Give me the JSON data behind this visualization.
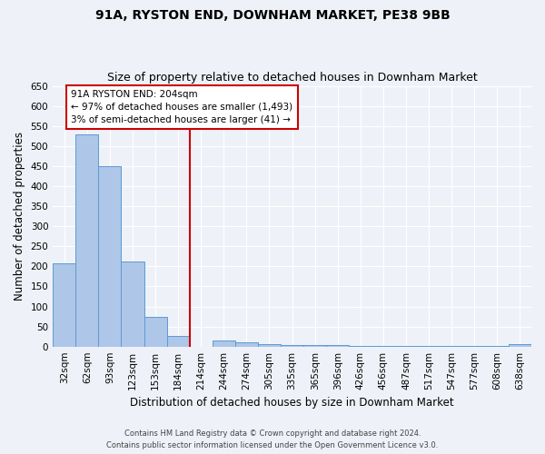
{
  "title1": "91A, RYSTON END, DOWNHAM MARKET, PE38 9BB",
  "title2": "Size of property relative to detached houses in Downham Market",
  "xlabel": "Distribution of detached houses by size in Downham Market",
  "ylabel": "Number of detached properties",
  "categories": [
    "32sqm",
    "62sqm",
    "93sqm",
    "123sqm",
    "153sqm",
    "184sqm",
    "214sqm",
    "244sqm",
    "274sqm",
    "305sqm",
    "335sqm",
    "365sqm",
    "396sqm",
    "426sqm",
    "456sqm",
    "487sqm",
    "517sqm",
    "547sqm",
    "577sqm",
    "608sqm",
    "638sqm"
  ],
  "values": [
    208,
    530,
    450,
    212,
    75,
    27,
    0,
    15,
    10,
    5,
    3,
    3,
    3,
    2,
    2,
    2,
    2,
    2,
    2,
    2,
    7
  ],
  "bar_color": "#aec6e8",
  "bar_edge_color": "#5b9bd5",
  "vline_x": 6.0,
  "vline_label": "91A RYSTON END: 204sqm",
  "annotation_line1": "← 97% of detached houses are smaller (1,493)",
  "annotation_line2": "3% of semi-detached houses are larger (41) →",
  "annotation_box_color": "#ffffff",
  "annotation_box_edge": "#cc0000",
  "vline_color": "#cc0000",
  "ylim": [
    0,
    650
  ],
  "yticks": [
    0,
    50,
    100,
    150,
    200,
    250,
    300,
    350,
    400,
    450,
    500,
    550,
    600,
    650
  ],
  "footnote1": "Contains HM Land Registry data © Crown copyright and database right 2024.",
  "footnote2": "Contains public sector information licensed under the Open Government Licence v3.0.",
  "bg_color": "#eef2f8",
  "title1_fontsize": 10,
  "title2_fontsize": 9,
  "xlabel_fontsize": 8.5,
  "ylabel_fontsize": 8.5,
  "tick_fontsize": 7.5,
  "annot_fontsize": 7.5
}
